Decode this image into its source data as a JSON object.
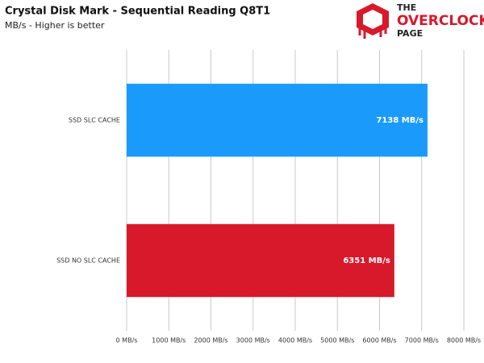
{
  "chart_data": {
    "type": "bar",
    "orientation": "horizontal",
    "title": "Crystal Disk Mark - Sequential Reading Q8T1",
    "subtitle": "MB/s - Higher is better",
    "categories": [
      "SSD SLC CACHE",
      "SSD NO SLC CACHE"
    ],
    "values": [
      7138,
      6351
    ],
    "value_labels": [
      "7138 MB/s",
      "6351 MB/s"
    ],
    "colors": [
      "#1a9bfc",
      "#d7192b"
    ],
    "xlim": [
      0,
      8000
    ],
    "xticks": [
      {
        "value": 0,
        "label": "0 MB/s"
      },
      {
        "value": 1000,
        "label": "1000 MB/s"
      },
      {
        "value": 2000,
        "label": "2000 MB/s"
      },
      {
        "value": 3000,
        "label": "3000 MB/s"
      },
      {
        "value": 4000,
        "label": "4000 MB/s"
      },
      {
        "value": 5000,
        "label": "5000 MB/s"
      },
      {
        "value": 6000,
        "label": "6000 MB/s"
      },
      {
        "value": 7000,
        "label": "7000 MB/s"
      },
      {
        "value": 8000,
        "label": "8000 MB/s"
      }
    ],
    "grid": true
  },
  "logo": {
    "lines": [
      "THE",
      "OVERCLOCK",
      "PAGE"
    ]
  }
}
